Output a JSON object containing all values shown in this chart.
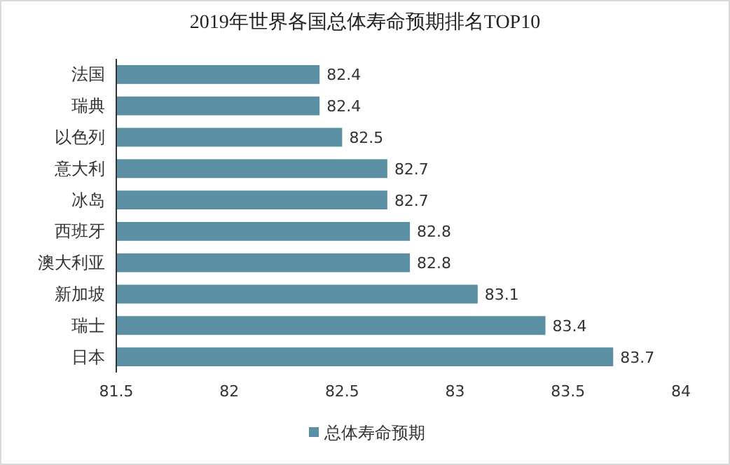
{
  "chart_data": {
    "type": "bar",
    "orientation": "horizontal",
    "title": "2019年世界各国总体寿命预期排名TOP10",
    "categories": [
      "法国",
      "瑞典",
      "以色列",
      "意大利",
      "冰岛",
      "西班牙",
      "澳大利亚",
      "新加坡",
      "瑞士",
      "日本"
    ],
    "series": [
      {
        "name": "总体寿命预期",
        "color": "#5b8fa3",
        "values": [
          82.4,
          82.4,
          82.5,
          82.7,
          82.7,
          82.8,
          82.8,
          83.1,
          83.4,
          83.7
        ]
      }
    ],
    "xlim": [
      81.5,
      84
    ],
    "xticks": [
      81.5,
      82,
      82.5,
      83,
      83.5,
      84
    ],
    "data_labels": true,
    "legend": "bottom"
  }
}
